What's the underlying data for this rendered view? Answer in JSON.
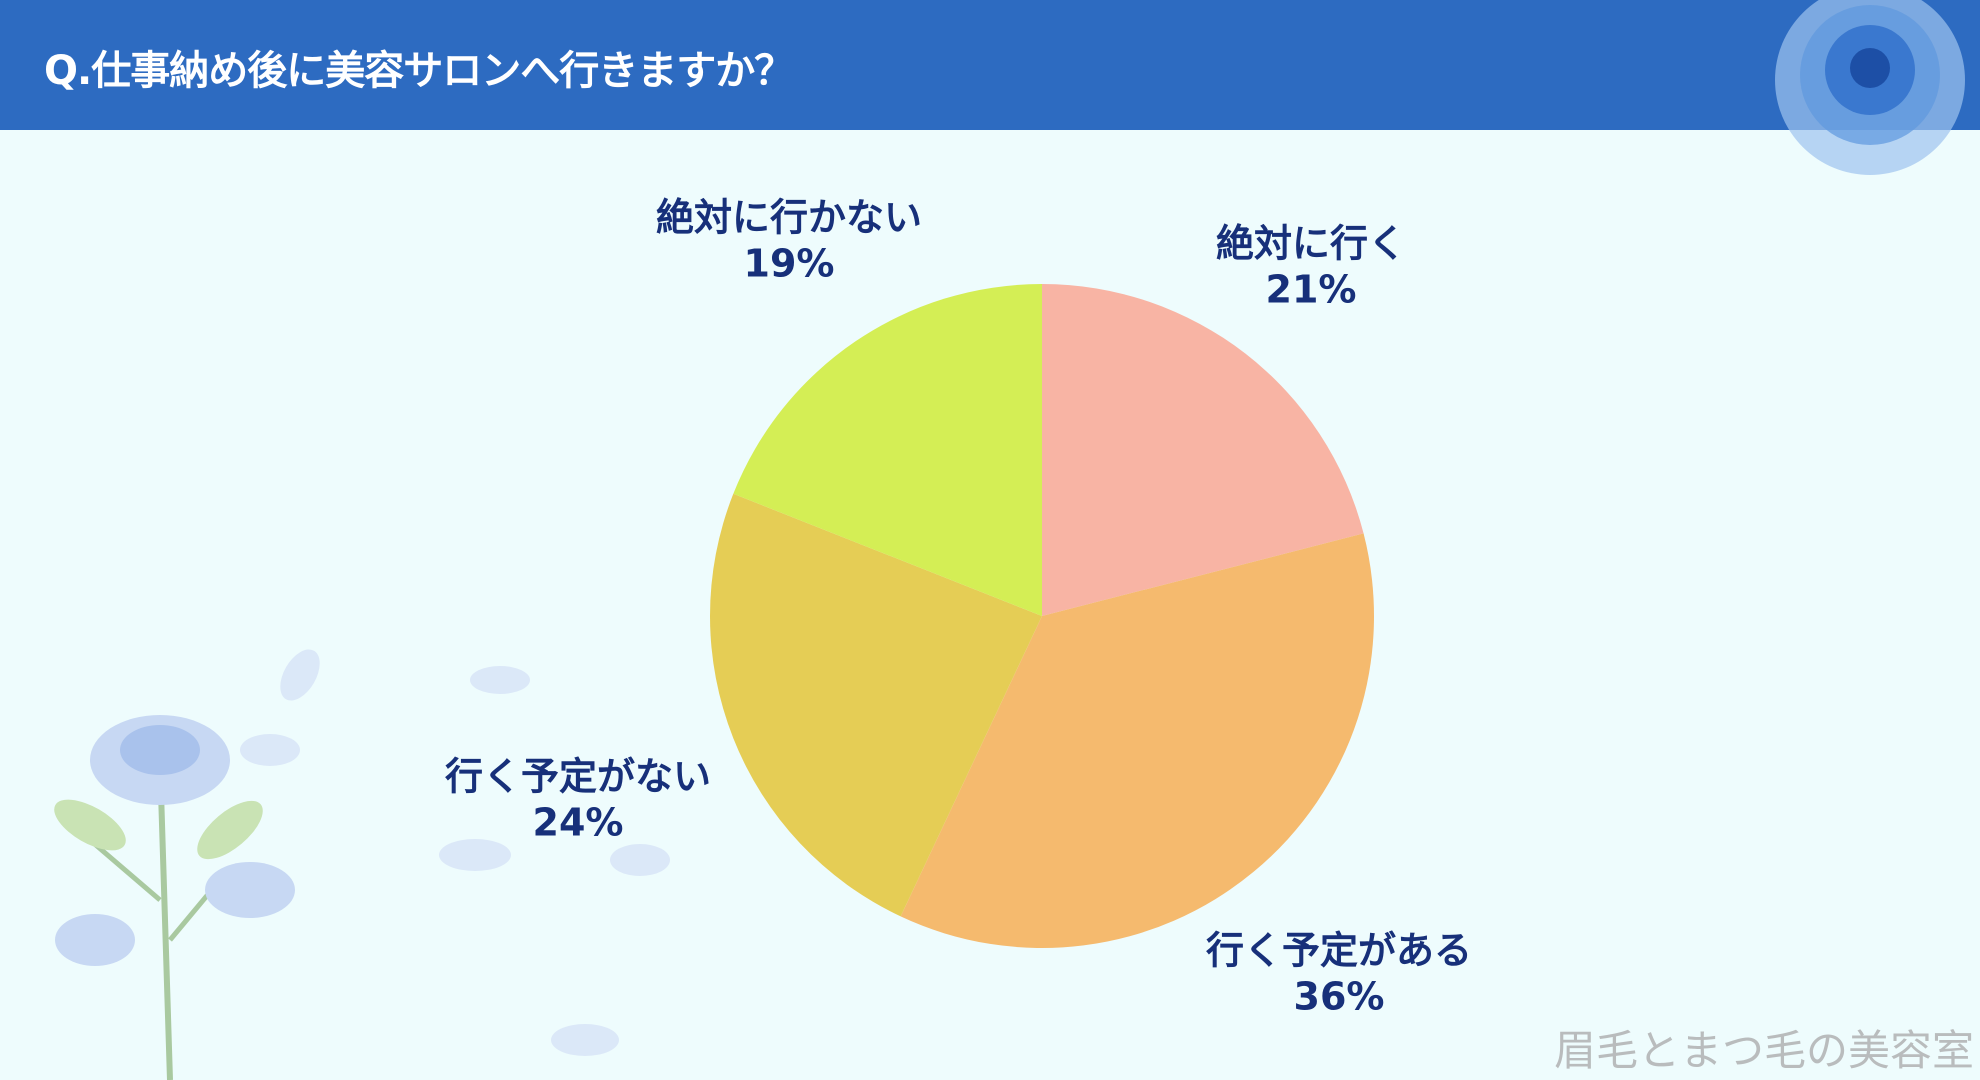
{
  "header": {
    "title": "Q.仕事納め後に美容サロンへ行きますか？"
  },
  "chart_data": {
    "type": "pie",
    "title": "Q.仕事納め後に美容サロンへ行きますか？",
    "categories": [
      "絶対に行く",
      "行く予定がある",
      "行く予定がない",
      "絶対に行かない"
    ],
    "values": [
      21,
      36,
      24,
      19
    ],
    "value_labels": [
      "21%",
      "36%",
      "24%",
      "19%"
    ],
    "colors": [
      "#f8b4a4",
      "#f5ba6e",
      "#e5cd55",
      "#d4ee55"
    ],
    "start": "top",
    "direction": "clockwise",
    "legend": "none"
  },
  "watermark": "眉毛とまつ毛の美容室",
  "colors": {
    "header": "#2d6bc1",
    "background": "#eefcfd",
    "label": "#17307a"
  }
}
